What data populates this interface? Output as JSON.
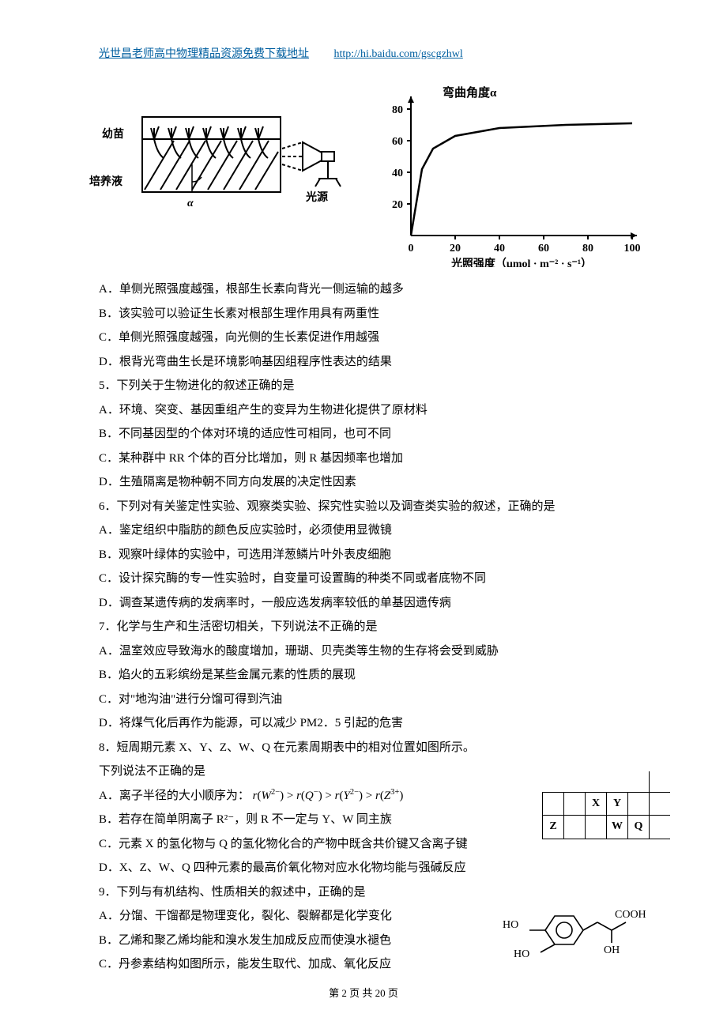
{
  "header": {
    "left": "光世昌老师高中物理精品资源免费下载地址",
    "url": "http://hi.baidu.com/gscgzhwl"
  },
  "figLeft": {
    "lab_seedling": "幼苗",
    "lab_solution": "培养液",
    "lab_alpha": "α",
    "lab_light": "光源"
  },
  "figRight": {
    "title": "弯曲角度α",
    "ylabel_ticks": [
      "20",
      "40",
      "60",
      "80"
    ],
    "xlabel": "光照强度（μmol · m⁻² · s⁻¹）",
    "xticks": [
      "0",
      "20",
      "40",
      "60",
      "80",
      "100"
    ],
    "curve": [
      [
        0,
        0
      ],
      [
        5,
        42
      ],
      [
        10,
        55
      ],
      [
        20,
        63
      ],
      [
        40,
        68
      ],
      [
        70,
        70
      ],
      [
        100,
        71
      ]
    ],
    "xlim": [
      0,
      100
    ],
    "ylim": [
      0,
      85
    ],
    "axis_color": "#000",
    "curve_color": "#000"
  },
  "q4o": {
    "A": "A．单侧光照强度越强，根部生长素向背光一侧运输的越多",
    "B": "B．该实验可以验证生长素对根部生理作用具有两重性",
    "C": "C．单侧光照强度越强，向光侧的生长素促进作用越强",
    "D": "D．根背光弯曲生长是环境影响基因组程序性表达的结果"
  },
  "q5": {
    "stem": "5．下列关于生物进化的叙述正确的是",
    "A": "A．环境、突变、基因重组产生的变异为生物进化提供了原材料",
    "B": "B．不同基因型的个体对环境的适应性可相同，也可不同",
    "C": "C．某种群中 RR 个体的百分比增加，则 R 基因频率也增加",
    "D": "D．生殖隔离是物种朝不同方向发展的决定性因素"
  },
  "q6": {
    "stem": "6．下列对有关鉴定性实验、观察类实验、探究性实验以及调查类实验的叙述，正确的是",
    "A": "A．鉴定组织中脂肪的颜色反应实验时，必须使用显微镜",
    "B": "B．观察叶绿体的实验中，可选用洋葱鳞片叶外表皮细胞",
    "C": "C．设计探究酶的专一性实验时，自变量可设置酶的种类不同或者底物不同",
    "D": "D．调查某遗传病的发病率时，一般应选发病率较低的单基因遗传病"
  },
  "q7": {
    "stem": "7．化学与生产和生活密切相关，下列说法不正确的是",
    "A": "A．温室效应导致海水的酸度增加，珊瑚、贝壳类等生物的生存将会受到威胁",
    "B": "B．焰火的五彩缤纷是某些金属元素的性质的展现",
    "C": "C．对\"地沟油\"进行分馏可得到汽油",
    "D": "D．将煤气化后再作为能源，可以减少 PM2．5 引起的危害"
  },
  "q8": {
    "stem": "8．短周期元素 X、Y、Z、W、Q 在元素周期表中的相对位置如图所示。",
    "sub": "下列说法不正确的是",
    "A_pre": "A．离子半径的大小顺序为：",
    "B": "B．若存在简单阴离子 R²⁻，则 R 不一定与 Y、W 同主族",
    "C": "C．元素 X 的氢化物与 Q 的氢化物化合的产物中既含共价键又含离子键",
    "D": "D．X、Z、W、Q 四种元素的最高价氧化物对应水化物均能与强碱反应",
    "cells": {
      "X": "X",
      "Y": "Y",
      "Z": "Z",
      "W": "W",
      "Q": "Q"
    }
  },
  "q9": {
    "stem": "9．下列与有机结构、性质相关的叙述中，正确的是",
    "A": "A．分馏、干馏都是物理变化，裂化、裂解都是化学变化",
    "B": "B．乙烯和聚乙烯均能和溴水发生加成反应而使溴水褪色",
    "C": "C．丹参素结构如图所示，能发生取代、加成、氧化反应",
    "mol": {
      "HO1": "HO",
      "HO2": "HO",
      "OH": "OH",
      "COOH": "COOH"
    }
  },
  "footer": "第 2 页 共 20 页"
}
